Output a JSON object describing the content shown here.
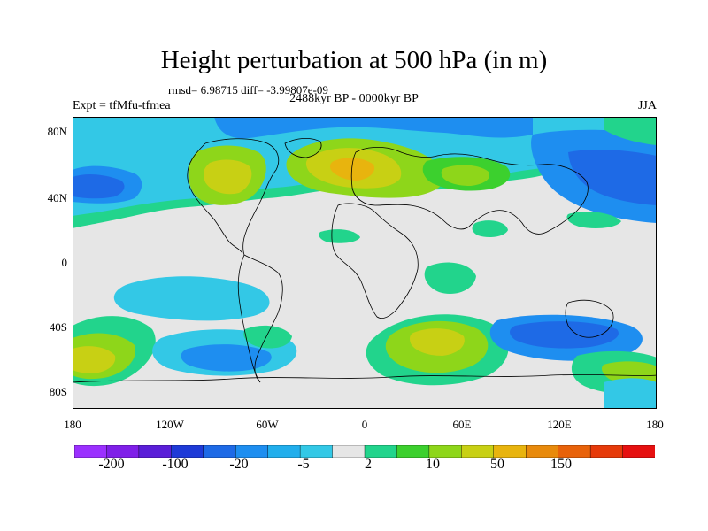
{
  "title": "Height perturbation at 500 hPa (in m)",
  "stats": "rmsd= 6.98715 diff= -3.99807e-09",
  "experiment": "Expt = tfMfu-tfmea",
  "period": "2488kyr BP - 0000kyr BP",
  "season": "JJA",
  "lat_labels": [
    "80N",
    "40N",
    "0",
    "40S",
    "80S"
  ],
  "lon_labels": [
    "180",
    "120W",
    "60W",
    "0",
    "60E",
    "120E",
    "180"
  ],
  "colorbar": {
    "colors": [
      "#9b30ff",
      "#7f1fe8",
      "#5a1ed8",
      "#1e3ad7",
      "#1e6ae6",
      "#1e8ef0",
      "#21aeec",
      "#33c8e6",
      "#e6e6e6",
      "#22d48c",
      "#3cd02e",
      "#8ed61a",
      "#c8d014",
      "#e8b40e",
      "#e88a0c",
      "#e8620a",
      "#e63a0a",
      "#e61010"
    ],
    "labels": [
      "-200",
      "-100",
      "-20",
      "-5",
      "2",
      "10",
      "50",
      "150"
    ]
  },
  "map_colors": {
    "background": "#e6e6e6",
    "light_blue": "#33c8e6",
    "mid_blue": "#1e8ef0",
    "blue": "#1e6ae6",
    "dark_blue": "#1e3ad7",
    "light_green": "#22d48c",
    "green": "#3cd02e",
    "yellow_green": "#8ed61a",
    "yellow": "#c8d014",
    "orange": "#e8b40e",
    "coast": "#000000"
  }
}
